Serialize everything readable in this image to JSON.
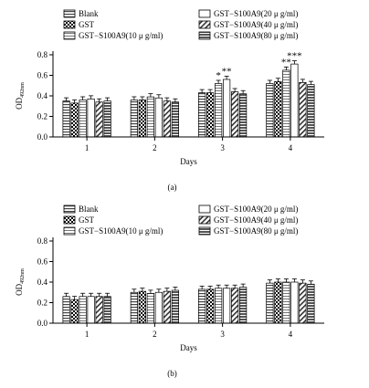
{
  "chart_data": [
    {
      "type": "bar",
      "panel_label": "(a)",
      "xlabel": "Days",
      "ylabel": "OD",
      "ylabel_sub": "492nm",
      "ylim": [
        0,
        0.8
      ],
      "yticks": [
        "0.0",
        "0.2",
        "0.4",
        "0.6",
        "0.8"
      ],
      "categories": [
        "1",
        "2",
        "3",
        "4"
      ],
      "grid": false,
      "legend_position": "top",
      "series": [
        {
          "name": "Blank",
          "values": [
            0.35,
            0.36,
            0.43,
            0.52
          ]
        },
        {
          "name": "GST",
          "values": [
            0.33,
            0.36,
            0.43,
            0.54
          ]
        },
        {
          "name": "GST−S100A9(10 μ g/ml)",
          "values": [
            0.36,
            0.39,
            0.52,
            0.65
          ]
        },
        {
          "name": "GST−S100A9(20 μ g/ml)",
          "values": [
            0.37,
            0.38,
            0.56,
            0.71
          ]
        },
        {
          "name": "GST−S100A9(40 μ g/ml)",
          "values": [
            0.34,
            0.35,
            0.44,
            0.53
          ]
        },
        {
          "name": "GST−S100A9(80 μ g/ml)",
          "values": [
            0.35,
            0.34,
            0.42,
            0.51
          ]
        }
      ],
      "annotations": [
        {
          "category": "3",
          "series_index": 2,
          "text": "*"
        },
        {
          "category": "3",
          "series_index": 3,
          "text": "**"
        },
        {
          "category": "4",
          "series_index": 2,
          "text": "**"
        },
        {
          "category": "4",
          "series_index": 3,
          "text": "***"
        }
      ]
    },
    {
      "type": "bar",
      "panel_label": "(b)",
      "xlabel": "Days",
      "ylabel": "OD",
      "ylabel_sub": "492nm",
      "ylim": [
        0,
        0.8
      ],
      "yticks": [
        "0.0",
        "0.2",
        "0.4",
        "0.6",
        "0.8"
      ],
      "categories": [
        "1",
        "2",
        "3",
        "4"
      ],
      "grid": false,
      "legend_position": "top",
      "series": [
        {
          "name": "Blank",
          "values": [
            0.26,
            0.3,
            0.33,
            0.39
          ]
        },
        {
          "name": "GST",
          "values": [
            0.23,
            0.31,
            0.33,
            0.4
          ]
        },
        {
          "name": "GST−S100A9(10 μ g/ml)",
          "values": [
            0.26,
            0.29,
            0.34,
            0.4
          ]
        },
        {
          "name": "GST−S100A9(20 μ g/ml)",
          "values": [
            0.26,
            0.3,
            0.34,
            0.4
          ]
        },
        {
          "name": "GST−S100A9(40 μ g/ml)",
          "values": [
            0.26,
            0.31,
            0.34,
            0.39
          ]
        },
        {
          "name": "GST−S100A9(80 μ g/ml)",
          "values": [
            0.26,
            0.32,
            0.35,
            0.38
          ]
        }
      ],
      "annotations": []
    }
  ]
}
